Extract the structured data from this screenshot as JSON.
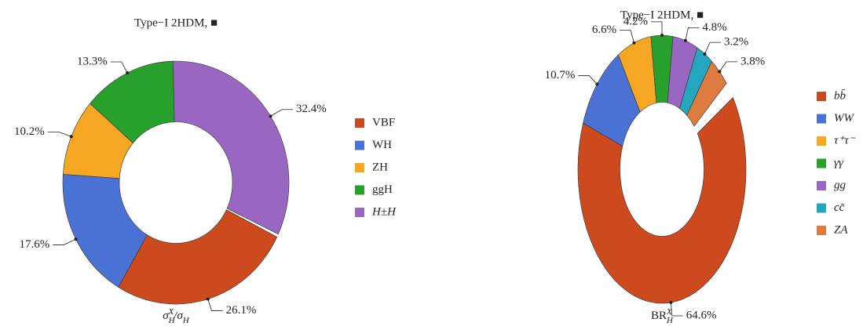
{
  "chart_data": [
    {
      "type": "pie",
      "title": "Type−I 2HDM, ■",
      "xlabel": [
        {
          "text": "σ",
          "pos": "base"
        },
        {
          "text": "H",
          "pos": "sub"
        },
        {
          "text": "X",
          "pos": "sup"
        },
        {
          "text": "/σ",
          "pos": "base"
        },
        {
          "text": "H",
          "pos": "sub"
        }
      ],
      "categories": [
        "VBF",
        "WH",
        "ZH",
        "ggH",
        "H±H"
      ],
      "values": [
        26.1,
        17.6,
        10.2,
        13.3,
        32.4
      ],
      "value_labels": [
        "26.1%",
        "17.6%",
        "10.2%",
        "13.3%",
        "32.4%"
      ],
      "colors": [
        "#cc4a1e",
        "#4a72d4",
        "#f5a623",
        "#28a02c",
        "#9966c2"
      ],
      "startangle": 116.6
    },
    {
      "type": "pie",
      "title": "Type−I 2HDM, ■",
      "xlabel": [
        {
          "text": "BR",
          "pos": "base"
        },
        {
          "text": "H",
          "pos": "sub"
        },
        {
          "text": "X",
          "pos": "sup"
        }
      ],
      "categories": [
        "bb̄",
        "WW",
        "τ⁺τ⁻",
        "γγ",
        "gg",
        "cc̄",
        "ZA"
      ],
      "values": [
        64.6,
        10.7,
        6.6,
        4.2,
        4.8,
        3.2,
        3.8
      ],
      "value_labels": [
        "64.6%",
        "10.7%",
        "6.6%",
        "4.2%",
        "4.8%",
        "3.2%",
        "3.8%"
      ],
      "colors": [
        "#cc4a1e",
        "#4a72d4",
        "#f5a623",
        "#28a02c",
        "#9966c2",
        "#25a5be",
        "#dd7b3f"
      ],
      "startangle": 57.6
    }
  ]
}
